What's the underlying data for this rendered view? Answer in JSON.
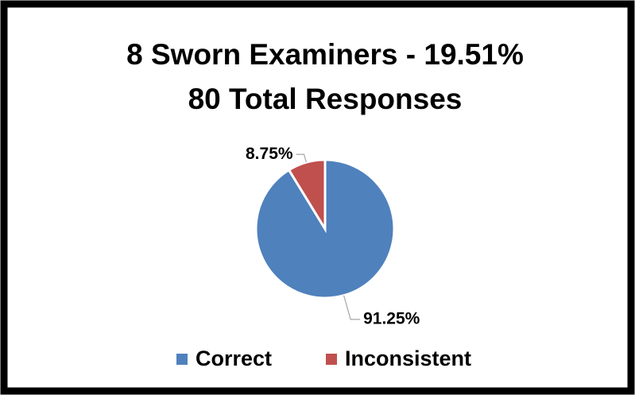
{
  "chart_data": {
    "type": "pie",
    "title": "8 Sworn Examiners - 19.51%",
    "subtitle": "80 Total Responses",
    "categories": [
      "Correct",
      "Inconsistent"
    ],
    "values": [
      91.25,
      8.75
    ],
    "value_labels": [
      "91.25%",
      "8.75%"
    ],
    "colors": [
      "#4f81bd",
      "#c0504d"
    ],
    "legend": "bottom"
  }
}
